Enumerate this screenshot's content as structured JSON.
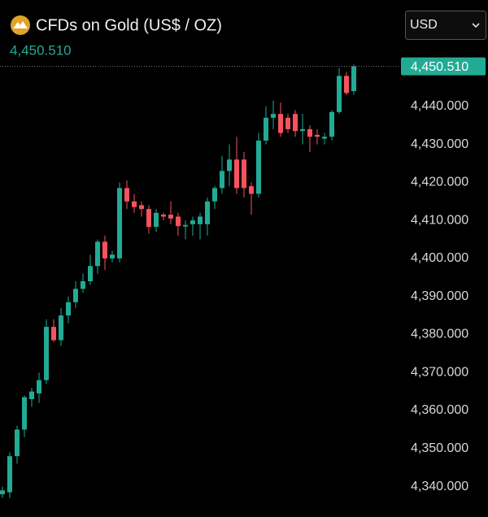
{
  "chart_data": {
    "type": "candlestick",
    "title": "CFDs on Gold (US$ / OZ)",
    "currency": "USD",
    "last_price": {
      "value": 4450.51,
      "label": "4,450.510"
    },
    "up_color": "#22ab94",
    "down_color": "#f7525f",
    "open": [
      4338,
      4338.5,
      4348,
      4355,
      4363,
      4364.5,
      4368,
      4382,
      4378.5,
      4385,
      4388.5,
      4392,
      4394,
      4398,
      4404.4,
      4400,
      4400,
      4418.5,
      4415,
      4414,
      4413,
      4408.3,
      4411.5,
      4411.5,
      4411,
      4408.4,
      4409,
      4409,
      4409,
      4415,
      4418.5,
      4423,
      4426,
      4426,
      4419,
      4417,
      4431,
      4437,
      4438,
      4437,
      4438,
      4433.5,
      4434,
      4432.5,
      4431.5,
      4432,
      4438.5,
      4448,
      4444
    ],
    "high": [
      4340,
      4349,
      4356,
      4364,
      4366,
      4370,
      4384,
      4384,
      4387,
      4390,
      4394,
      4396,
      4401,
      4405,
      4406,
      4402,
      4420,
      4420.5,
      4417,
      4415,
      4414,
      4413,
      4412,
      4415,
      4412,
      4410,
      4411,
      4412,
      4416,
      4419,
      4427,
      4430,
      4432,
      4428,
      4420,
      4433,
      4440,
      4441.5,
      4441,
      4438,
      4439,
      4438,
      4435,
      4434,
      4433,
      4439,
      4450,
      4449,
      4451
    ],
    "low": [
      4337,
      4337,
      4346,
      4353,
      4361,
      4362,
      4367,
      4378,
      4377,
      4383,
      4387,
      4391,
      4393,
      4396,
      4397,
      4399,
      4399,
      4413,
      4412,
      4411,
      4406.5,
      4407,
      4410,
      4409,
      4406,
      4405,
      4406,
      4405,
      4406,
      4413,
      4417,
      4419,
      4417,
      4416,
      4411.5,
      4416,
      4430,
      4434,
      4432,
      4433,
      4432,
      4430,
      4428,
      4430,
      4430,
      4431,
      4438,
      4443,
      4443
    ],
    "close": [
      4339,
      4348,
      4355,
      4363.5,
      4365,
      4368,
      4382,
      4378.5,
      4385,
      4388.5,
      4392,
      4394,
      4398,
      4404.4,
      4400,
      4401,
      4418.5,
      4415,
      4413.5,
      4413,
      4408.3,
      4412,
      4411,
      4410.5,
      4408.5,
      4408.8,
      4410,
      4411,
      4415,
      4418.5,
      4423,
      4426,
      4418.5,
      4418.5,
      4417,
      4431,
      4437,
      4438,
      4433,
      4434,
      4433.5,
      4434,
      4432,
      4432,
      4432,
      4438.5,
      4448,
      4443.5,
      4450.51
    ],
    "ylim": [
      4332,
      4453
    ],
    "yticks": [
      {
        "value": 4340,
        "label": "4,340.000"
      },
      {
        "value": 4350,
        "label": "4,350.000"
      },
      {
        "value": 4360,
        "label": "4,360.000"
      },
      {
        "value": 4370,
        "label": "4,370.000"
      },
      {
        "value": 4380,
        "label": "4,380.000"
      },
      {
        "value": 4390,
        "label": "4,390.000"
      },
      {
        "value": 4400,
        "label": "4,400.000"
      },
      {
        "value": 4410,
        "label": "4,410.000"
      },
      {
        "value": 4420,
        "label": "4,420.000"
      },
      {
        "value": 4430,
        "label": "4,430.000"
      },
      {
        "value": 4440,
        "label": "4,440.000"
      }
    ]
  }
}
